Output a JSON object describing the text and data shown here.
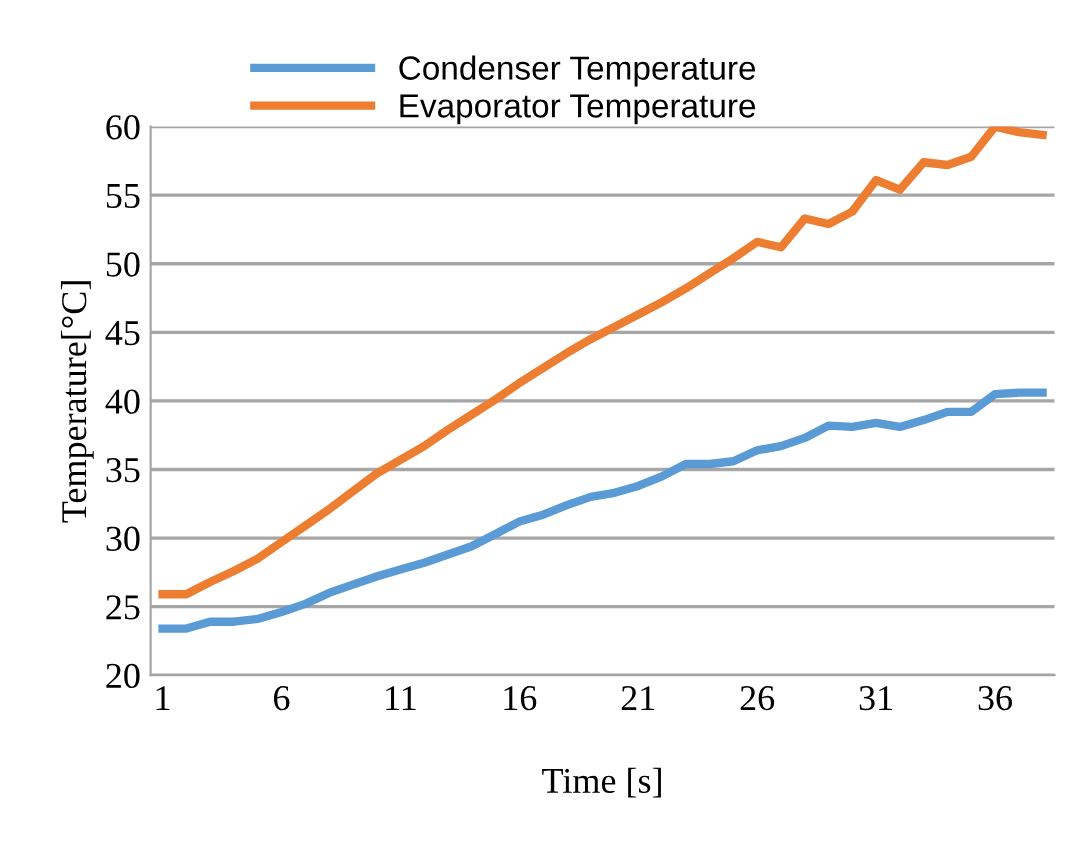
{
  "chart_data": {
    "type": "line",
    "xlabel": "Time [s]",
    "ylabel": "Temperature[°C]",
    "categories": [
      "1",
      null,
      null,
      null,
      null,
      "6",
      null,
      null,
      null,
      null,
      "11",
      null,
      null,
      null,
      null,
      "16",
      null,
      null,
      null,
      null,
      "21",
      null,
      null,
      null,
      null,
      "26",
      null,
      null,
      null,
      null,
      "31",
      null,
      null,
      null,
      null,
      "36",
      null,
      null
    ],
    "series": [
      {
        "name": "Condenser Temperature",
        "color": "#5b9bd5",
        "values": [
          23.4,
          23.4,
          23.9,
          23.9,
          24.1,
          24.6,
          25.2,
          26,
          26.6,
          27.2,
          27.7,
          28.2,
          28.8,
          29.4,
          30.3,
          31.2,
          31.7,
          32.4,
          33,
          33.3,
          33.8,
          34.5,
          35.4,
          35.4,
          35.6,
          36.4,
          36.7,
          37.3,
          38.2,
          38.1,
          38.4,
          38.1,
          38.6,
          39.2,
          39.2,
          40.5,
          40.6,
          40.6
        ]
      },
      {
        "name": "Evaporator Temperature",
        "color": "#ed7d31",
        "values": [
          25.9,
          25.9,
          26.8,
          27.6,
          28.5,
          29.7,
          30.9,
          32.1,
          33.4,
          34.7,
          35.7,
          36.7,
          37.9,
          39,
          40.1,
          41.3,
          42.4,
          43.5,
          44.5,
          45.4,
          46.3,
          47.2,
          48.2,
          49.3,
          50.4,
          51.6,
          51.2,
          53.3,
          52.9,
          53.8,
          56.1,
          55.4,
          57.4,
          57.2,
          57.8,
          60,
          59.6,
          59.4
        ]
      }
    ],
    "ylim": [
      20,
      60
    ],
    "yticks": [
      20,
      25,
      30,
      35,
      40,
      45,
      50,
      55,
      60
    ],
    "grid": "y",
    "legend": "top left",
    "marker": "none",
    "line_style": "solid"
  }
}
